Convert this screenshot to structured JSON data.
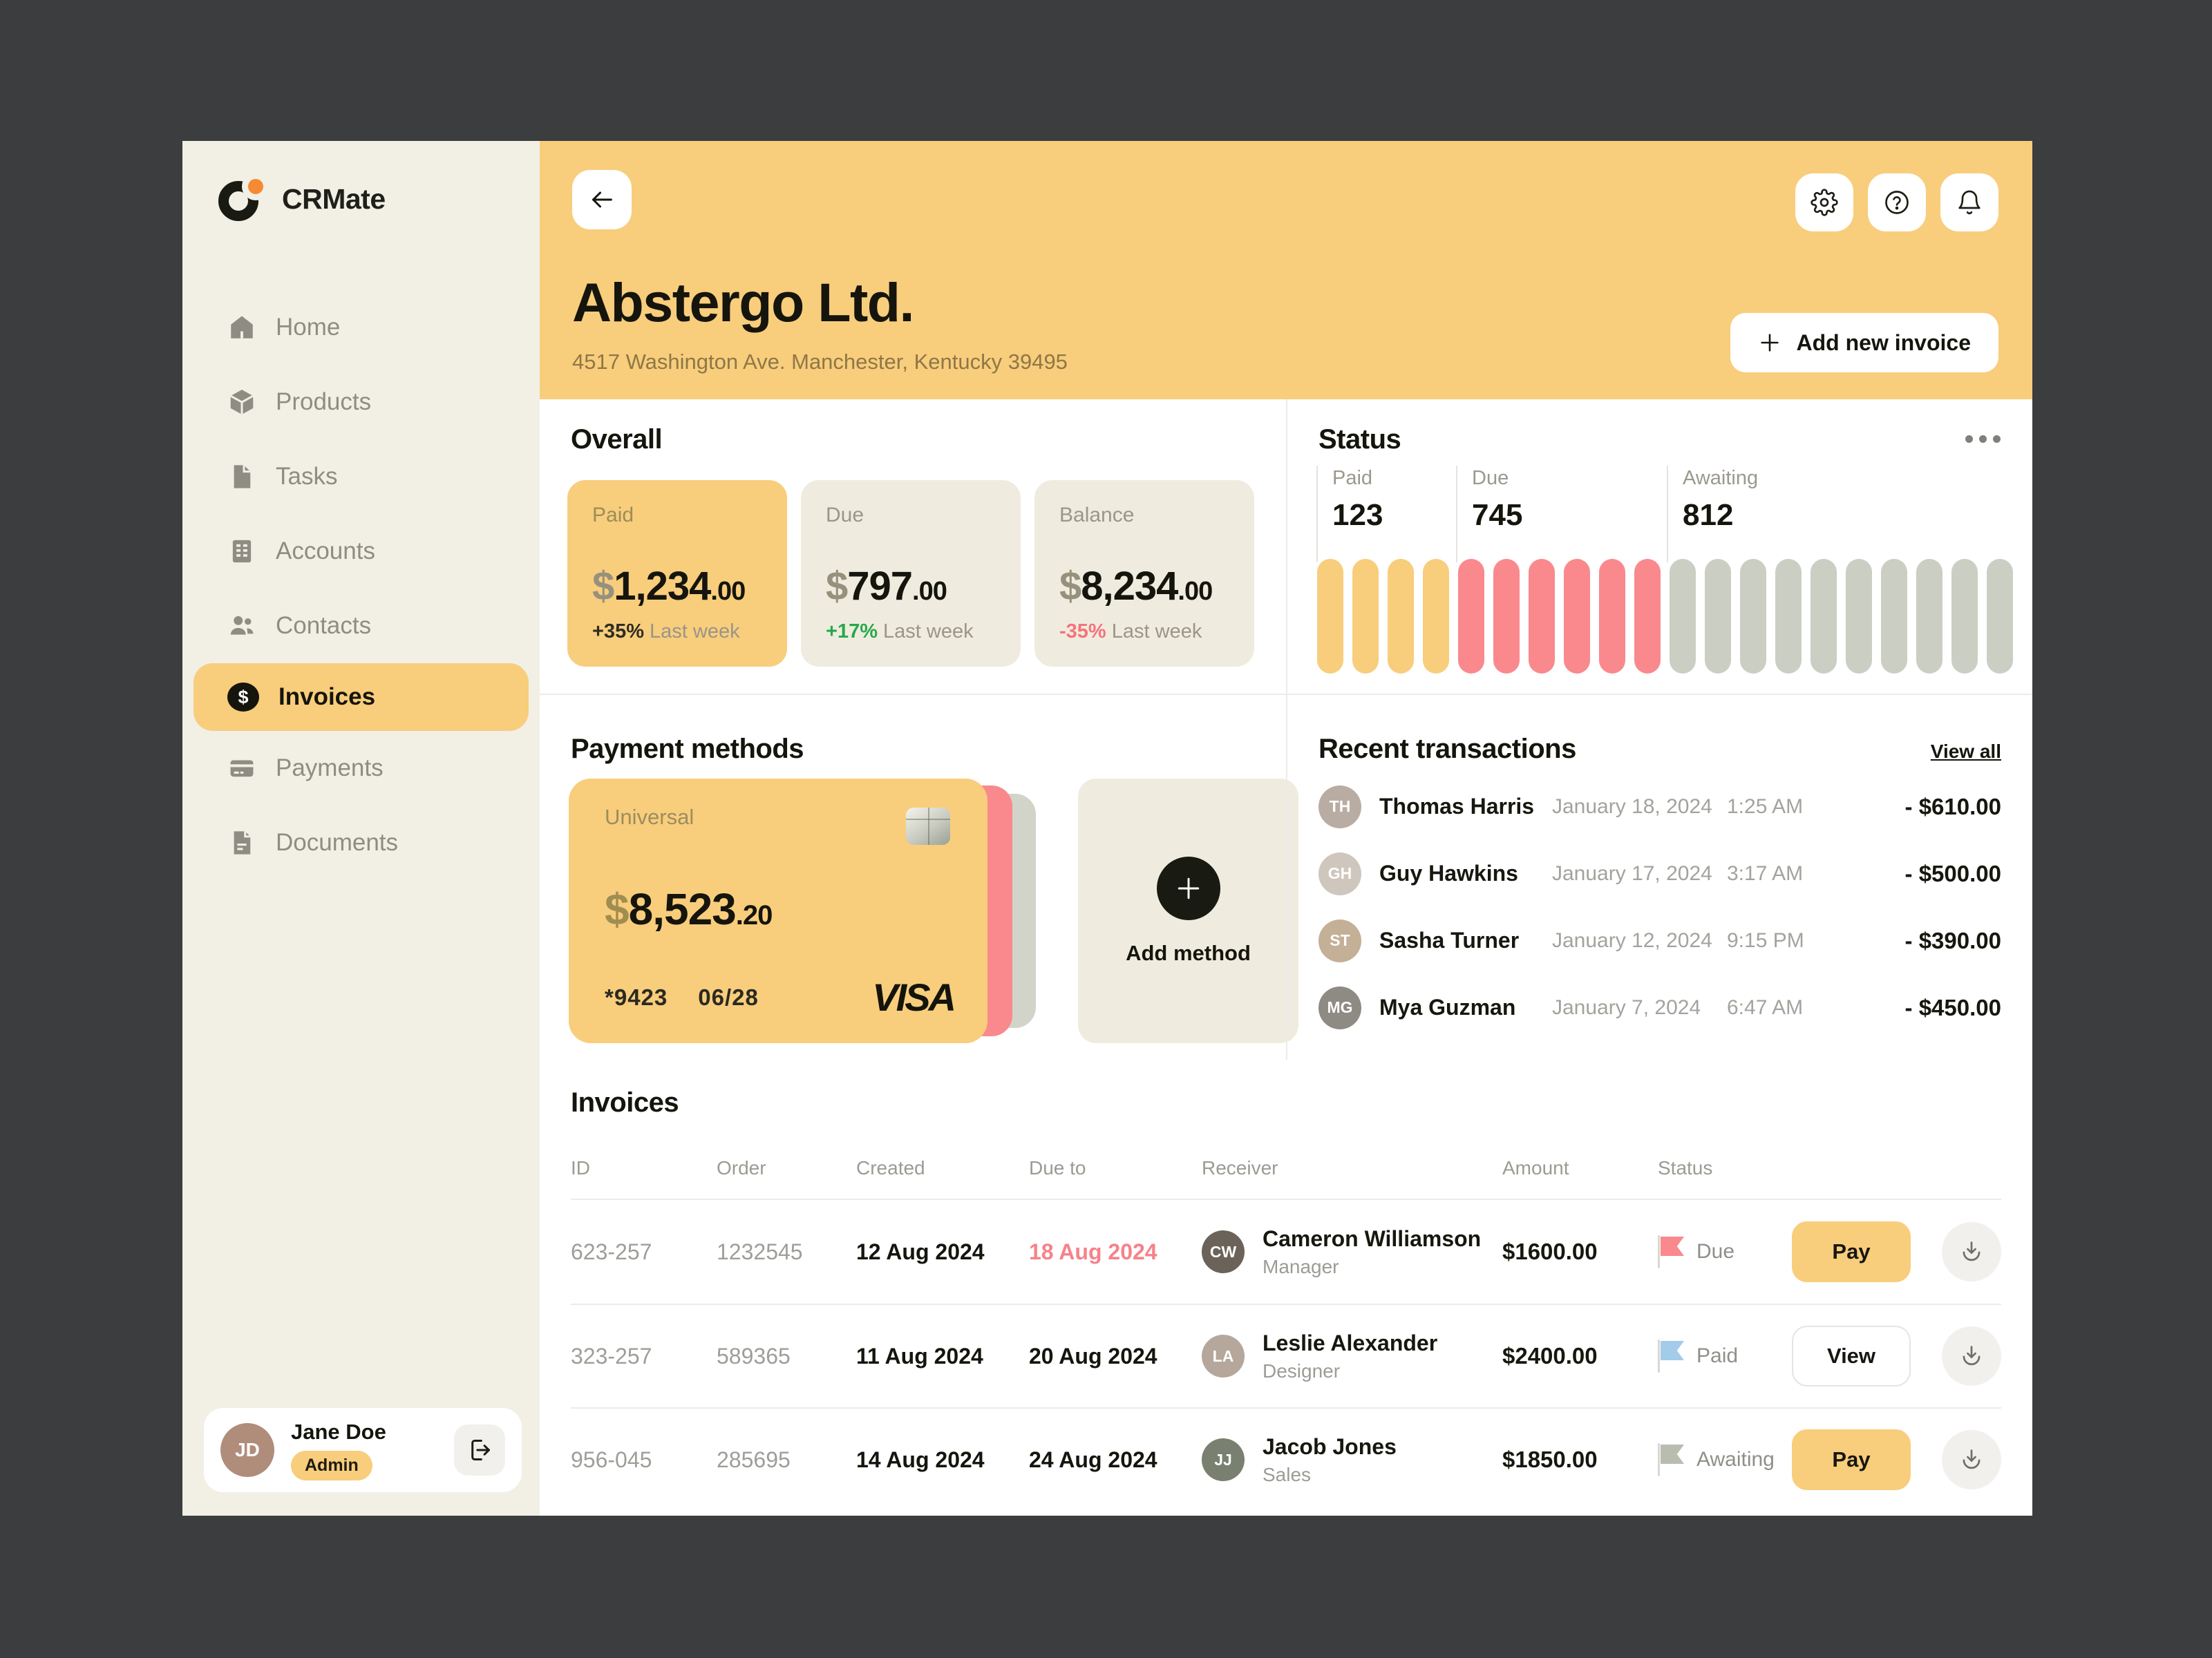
{
  "sidebar": {
    "brand": "CRMate",
    "items": [
      {
        "label": "Home"
      },
      {
        "label": "Products"
      },
      {
        "label": "Tasks"
      },
      {
        "label": "Accounts"
      },
      {
        "label": "Contacts"
      },
      {
        "label": "Invoices"
      },
      {
        "label": "Payments"
      },
      {
        "label": "Documents"
      }
    ],
    "user": {
      "name": "Jane Doe",
      "role": "Admin",
      "avatar": {
        "initials": "JD",
        "bg": "#b08d7a"
      }
    }
  },
  "header": {
    "company": "Abstergo Ltd.",
    "address": "4517 Washington Ave. Manchester, Kentucky 39495",
    "add_invoice_label": "Add new invoice"
  },
  "overall": {
    "title": "Overall",
    "cards": [
      {
        "label": "Paid",
        "currency": "$",
        "amount": "1,234",
        "cents": ".00",
        "delta": "+35%",
        "delta_note": " Last week",
        "delta_color": "#2e2d23"
      },
      {
        "label": "Due",
        "currency": "$",
        "amount": "797",
        "cents": ".00",
        "delta": "+17%",
        "delta_note": " Last week",
        "delta_color": "#27a84a"
      },
      {
        "label": "Balance",
        "currency": "$",
        "amount": "8,234",
        "cents": ".00",
        "delta": "-35%",
        "delta_note": " Last week",
        "delta_color": "#f5737c"
      }
    ]
  },
  "status": {
    "title": "Status",
    "groups": [
      {
        "label": "Paid",
        "value": "123",
        "count": 4,
        "color": "#f8cd7c"
      },
      {
        "label": "Due",
        "value": "745",
        "count": 6,
        "color": "#f9898d"
      },
      {
        "label": "Awaiting",
        "value": "812",
        "count": 10,
        "color": "#cbcec3"
      }
    ]
  },
  "payment_methods": {
    "title": "Payment methods",
    "card": {
      "name": "Universal",
      "currency": "$",
      "amount": "8,523",
      "cents": ".20",
      "masked": "*9423",
      "expiry": "06/28",
      "brand": "VISA"
    },
    "add_label": "Add method"
  },
  "recent": {
    "title": "Recent transactions",
    "view_all": "View all",
    "rows": [
      {
        "name": "Thomas Harris",
        "date": "January 18, 2024",
        "time": "1:25 AM",
        "amount": "- $610.00",
        "avatar": {
          "initials": "TH",
          "bg": "#b9aca3"
        }
      },
      {
        "name": "Guy Hawkins",
        "date": "January 17, 2024",
        "time": "3:17 AM",
        "amount": "- $500.00",
        "avatar": {
          "initials": "GH",
          "bg": "#cfc6bd"
        }
      },
      {
        "name": "Sasha Turner",
        "date": "January 12, 2024",
        "time": "9:15 PM",
        "amount": "- $390.00",
        "avatar": {
          "initials": "ST",
          "bg": "#c4af97"
        }
      },
      {
        "name": "Mya Guzman",
        "date": "January 7, 2024",
        "time": "6:47 AM",
        "amount": "- $450.00",
        "avatar": {
          "initials": "MG",
          "bg": "#8e8a84"
        }
      }
    ]
  },
  "invoices": {
    "title": "Invoices",
    "headers": {
      "id": "ID",
      "order": "Order",
      "created": "Created",
      "due": "Due to",
      "receiver": "Receiver",
      "amount": "Amount",
      "status": "Status"
    },
    "rows": [
      {
        "id": "623-257",
        "order": "1232545",
        "created": "12 Aug 2024",
        "due": "18 Aug 2024",
        "receiver": {
          "name": "Cameron Williamson",
          "role": "Manager",
          "avatar": {
            "initials": "CW",
            "bg": "#6b6259"
          }
        },
        "amount": "$1600.00",
        "status": {
          "label": "Due",
          "flag_color": "#f9898d"
        },
        "action": "Pay"
      },
      {
        "id": "323-257",
        "order": "589365",
        "created": "11 Aug 2024",
        "due": "20 Aug 2024",
        "receiver": {
          "name": "Leslie Alexander",
          "role": "Designer",
          "avatar": {
            "initials": "LA",
            "bg": "#b5a79b"
          }
        },
        "amount": "$2400.00",
        "status": {
          "label": "Paid",
          "flag_color": "#a3cbea"
        },
        "action": "View"
      },
      {
        "id": "956-045",
        "order": "285695",
        "created": "14 Aug 2024",
        "due": "24 Aug 2024",
        "receiver": {
          "name": "Jacob Jones",
          "role": "Sales",
          "avatar": {
            "initials": "JJ",
            "bg": "#7a8070"
          }
        },
        "amount": "$1850.00",
        "status": {
          "label": "Awaiting",
          "flag_color": "#b9bdb0"
        },
        "action": "Pay"
      }
    ]
  },
  "colors": {
    "frame_bg": "#3b3d3e",
    "accent_yellow": "#f8cd7c",
    "pill_red": "#f9898d",
    "pill_gray": "#cbcec3",
    "overdue_text": "#f6828a",
    "positive_text": "#27a84a",
    "negative_text": "#f5737c"
  }
}
